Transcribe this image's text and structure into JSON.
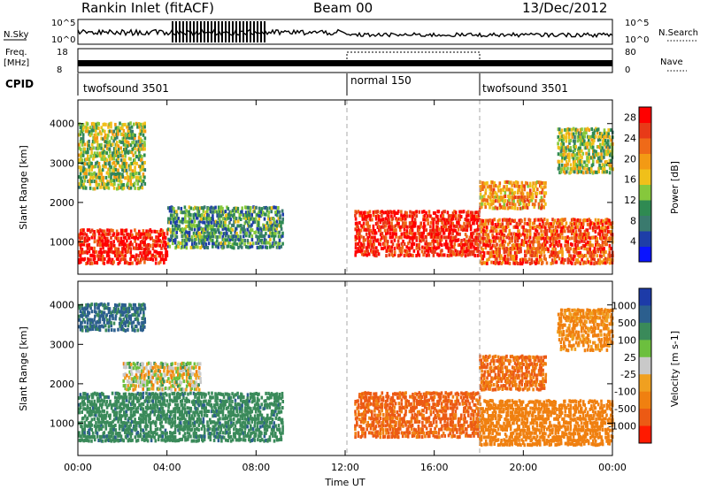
{
  "header": {
    "station": "Rankin Inlet (fitACF)",
    "beam": "Beam 00",
    "date": "13/Dec/2012"
  },
  "top_panels": {
    "nsky_label": "N.Sky",
    "nsky_ticks": [
      "10^5",
      "10^0"
    ],
    "nsearch_label": "N.Search",
    "freq_label": "Freq.",
    "freq_unit": "[MHz]",
    "freq_ticks": [
      "18",
      "8"
    ],
    "nave_ticks": [
      "80",
      "0"
    ],
    "nave_label": "Nave",
    "cpid_label": "CPID",
    "cpid_segments": [
      {
        "name": "twofsound 3501",
        "start": 0,
        "end": 12
      },
      {
        "name": "normal 150",
        "start": 12,
        "end": 18
      },
      {
        "name": "twofsound 3501",
        "start": 18,
        "end": 24
      }
    ]
  },
  "x_axis": {
    "label": "Time UT",
    "ticks": [
      "00:00",
      "04:00",
      "08:00",
      "12:00",
      "16:00",
      "20:00",
      "00:00"
    ]
  },
  "colors": {
    "power": [
      "#0a14ff",
      "#1e3ea8",
      "#3a7a6e",
      "#2f8a52",
      "#86c83c",
      "#f0c01a",
      "#f39a14",
      "#ef6a18",
      "#e83a18",
      "#ff0000"
    ],
    "velocity": [
      "#1d3ba8",
      "#2c5f8e",
      "#3a8a5a",
      "#6cbf3e",
      "#c9c9c9",
      "#f0a020",
      "#f08010",
      "#ec5a14",
      "#ff1a00"
    ]
  },
  "chart_data": [
    {
      "type": "heatmap",
      "panel": "power",
      "ylabel": "Slant Range [km]",
      "ylim": [
        180,
        4600
      ],
      "y_ticks": [
        "1000",
        "2000",
        "3000",
        "4000"
      ],
      "xlim_hours": [
        0,
        24
      ],
      "colorbar": {
        "label": "Power [dB]",
        "ticks": [
          "4",
          "8",
          "12",
          "16",
          "20",
          "24",
          "28"
        ],
        "range": [
          0,
          30
        ]
      },
      "features": [
        {
          "t_start": 0.0,
          "t_end": 4.0,
          "range_min": 400,
          "range_max": 1300,
          "value": 28
        },
        {
          "t_start": 4.0,
          "t_end": 9.2,
          "range_min": 800,
          "range_max": 1900,
          "value": 10
        },
        {
          "t_start": 12.4,
          "t_end": 18.0,
          "range_min": 600,
          "range_max": 1800,
          "value": 27
        },
        {
          "t_start": 18.0,
          "t_end": 24.0,
          "range_min": 400,
          "range_max": 1600,
          "value": 24
        },
        {
          "t_start": 0.0,
          "t_end": 3.0,
          "range_min": 2300,
          "range_max": 4000,
          "value": 14
        },
        {
          "t_start": 21.5,
          "t_end": 24.0,
          "range_min": 2700,
          "range_max": 3900,
          "value": 14
        },
        {
          "t_start": 18.0,
          "t_end": 21.0,
          "range_min": 1800,
          "range_max": 2500,
          "value": 20
        }
      ]
    },
    {
      "type": "heatmap",
      "panel": "velocity",
      "ylabel": "Slant Range [km]",
      "ylim": [
        180,
        4600
      ],
      "y_ticks": [
        "1000",
        "2000",
        "3000",
        "4000"
      ],
      "xlim_hours": [
        0,
        24
      ],
      "colorbar": {
        "label": "Velocity [m s-1]",
        "ticks": [
          "1000",
          "500",
          "100",
          "25",
          "-25",
          "-100",
          "-500",
          "-1000"
        ]
      },
      "features": [
        {
          "t_start": 0.0,
          "t_end": 9.2,
          "range_min": 500,
          "range_max": 1800,
          "value": 200
        },
        {
          "t_start": 2.0,
          "t_end": 5.5,
          "range_min": 1800,
          "range_max": 2500,
          "value": 0
        },
        {
          "t_start": 12.4,
          "t_end": 18.0,
          "range_min": 600,
          "range_max": 1800,
          "value": -400
        },
        {
          "t_start": 18.0,
          "t_end": 24.0,
          "range_min": 400,
          "range_max": 1600,
          "value": -150
        },
        {
          "t_start": 18.0,
          "t_end": 21.0,
          "range_min": 1800,
          "range_max": 2700,
          "value": -300
        },
        {
          "t_start": 21.5,
          "t_end": 24.0,
          "range_min": 2800,
          "range_max": 3900,
          "value": -100
        },
        {
          "t_start": 0.0,
          "t_end": 3.0,
          "range_min": 3300,
          "range_max": 4000,
          "value": 400
        }
      ]
    }
  ]
}
